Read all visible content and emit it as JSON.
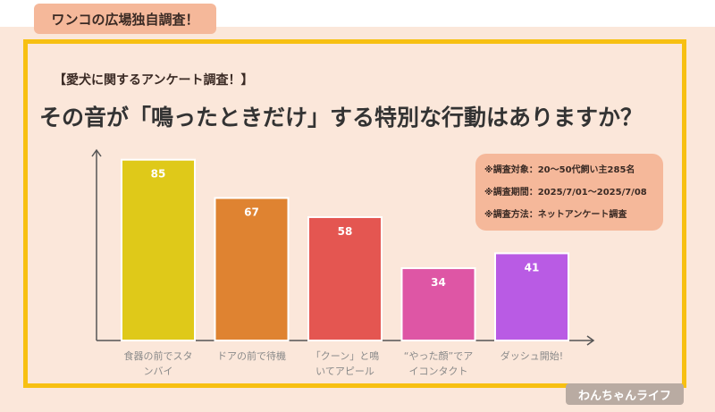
{
  "header": {
    "badge": "ワンコの広場独自調査！"
  },
  "survey": {
    "subtitle": "【愛犬に関するアンケート調査！】",
    "title": "その音が「鳴ったときだけ」する特別な行動はありますか？"
  },
  "info_box": {
    "lines": [
      "※調査対象：20〜50代飼い主285名",
      "※調査期間：2025/7/01〜2025/7/08",
      "※調査方法：ネットアンケート調査"
    ]
  },
  "chart_data": {
    "type": "bar",
    "title": "その音が「鳴ったときだけ」する特別な行動はありますか？",
    "categories": [
      [
        "食器の前でスタ",
        "ンバイ"
      ],
      [
        "ドアの前で待機"
      ],
      [
        "「クーン」と鳴",
        "いてアピール"
      ],
      [
        "“やった顔”でア",
        "イコンタクト"
      ],
      [
        "ダッシュ開始!"
      ]
    ],
    "values": [
      85,
      67,
      58,
      34,
      41
    ],
    "colors": [
      "#dfc919",
      "#df8331",
      "#e45651",
      "#de56a5",
      "#b95be4"
    ],
    "ylim": [
      0,
      100
    ],
    "grid": false,
    "data_labels": true
  },
  "logo": {
    "text": "わんちゃんライフ"
  }
}
